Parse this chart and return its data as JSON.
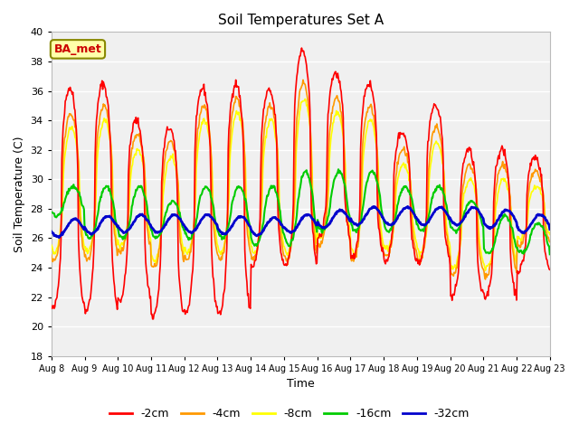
{
  "title": "Soil Temperatures Set A",
  "xlabel": "Time",
  "ylabel": "Soil Temperature (C)",
  "ylim": [
    18,
    40
  ],
  "yticks": [
    18,
    20,
    22,
    24,
    26,
    28,
    30,
    32,
    34,
    36,
    38,
    40
  ],
  "xtick_labels": [
    "Aug 8",
    "Aug 9",
    "Aug 10",
    "Aug 11",
    "Aug 12",
    "Aug 13",
    "Aug 14",
    "Aug 15",
    "Aug 16",
    "Aug 17",
    "Aug 18",
    "Aug 19",
    "Aug 20",
    "Aug 21",
    "Aug 22",
    "Aug 23"
  ],
  "legend_labels": [
    "-2cm",
    "-4cm",
    "-8cm",
    "-16cm",
    "-32cm"
  ],
  "line_colors": [
    "#ff0000",
    "#ff9900",
    "#ffff00",
    "#00cc00",
    "#0000cc"
  ],
  "line_widths": [
    1.2,
    1.2,
    1.2,
    1.5,
    2.0
  ],
  "figure_bg": "#ffffff",
  "plot_bg": "#f0f0f0",
  "grid_color": "#ffffff",
  "annotation_text": "BA_met",
  "annotation_bg": "#ffffaa",
  "annotation_fg": "#cc0000",
  "annotation_border": "#888800",
  "title_fontsize": 11,
  "axis_label_fontsize": 9,
  "tick_fontsize": 8,
  "legend_fontsize": 9,
  "n_points": 720,
  "n_days": 15
}
